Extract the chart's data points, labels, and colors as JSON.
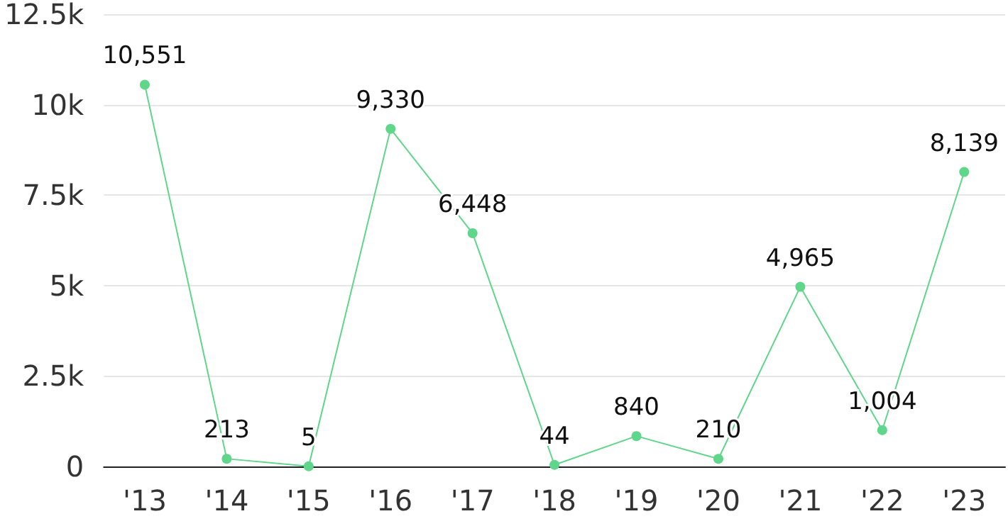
{
  "chart_data": {
    "type": "line",
    "categories": [
      "'13",
      "'14",
      "'15",
      "'16",
      "'17",
      "'18",
      "'19",
      "'20",
      "'21",
      "'22",
      "'23"
    ],
    "series": [
      {
        "color": "#5fd68a",
        "values": [
          10551,
          213,
          5,
          9330,
          6448,
          44,
          840,
          210,
          4965,
          1004,
          8139
        ],
        "value_labels": [
          "10,551",
          "213",
          "5",
          "9,330",
          "6,448",
          "44",
          "840",
          "210",
          "4,965",
          "1,004",
          "8,139"
        ]
      }
    ],
    "ylim": [
      0,
      12500
    ],
    "yticks": [
      0,
      {
        "value": 2500,
        "label": "2.5k"
      },
      {
        "value": 5000,
        "label": "5k"
      },
      {
        "value": 7500,
        "label": "7.5k"
      },
      {
        "value": 10000,
        "label": "10k"
      },
      {
        "value": 12500,
        "label": "12.5k"
      }
    ],
    "grid": "y",
    "marker": "circle",
    "line_style": "solid"
  }
}
